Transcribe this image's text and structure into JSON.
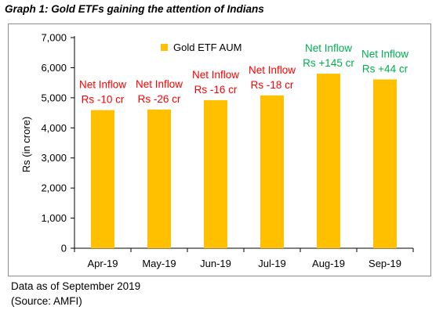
{
  "title": "Graph 1: Gold ETFs gaining the attention of Indians",
  "chart_data": {
    "type": "bar",
    "categories": [
      "Apr-19",
      "May-19",
      "Jun-19",
      "Jul-19",
      "Aug-19",
      "Sep-19"
    ],
    "series": [
      {
        "name": "Gold ETF AUM",
        "values": [
          4590,
          4610,
          4920,
          5080,
          5800,
          5610
        ]
      }
    ],
    "ylabel": "Rs (in crore)",
    "xlabel": "",
    "ylim": [
      0,
      7000
    ],
    "yticks": [
      "0",
      "1,000",
      "2,000",
      "3,000",
      "4,000",
      "5,000",
      "6,000",
      "7,000"
    ],
    "grid": false,
    "legend_position": "top",
    "bar_color": "#FFC000",
    "annotations": [
      {
        "line1": "Net Inflow",
        "line2": "Rs -10 cr",
        "color": "#FF0000"
      },
      {
        "line1": "Net Inflow",
        "line2": "Rs -26 cr",
        "color": "#FF0000"
      },
      {
        "line1": "Net Inflow",
        "line2": "Rs -16 cr",
        "color": "#FF0000"
      },
      {
        "line1": "Net Inflow",
        "line2": "Rs -18 cr",
        "color": "#FF0000"
      },
      {
        "line1": "Net Inflow",
        "line2": "Rs +145 cr",
        "color": "#00B050"
      },
      {
        "line1": "Net Inflow",
        "line2": "Rs +44 cr",
        "color": "#00B050"
      }
    ]
  },
  "footer": {
    "line1": "Data as of September 2019",
    "line2": "(Source: AMFI)"
  }
}
